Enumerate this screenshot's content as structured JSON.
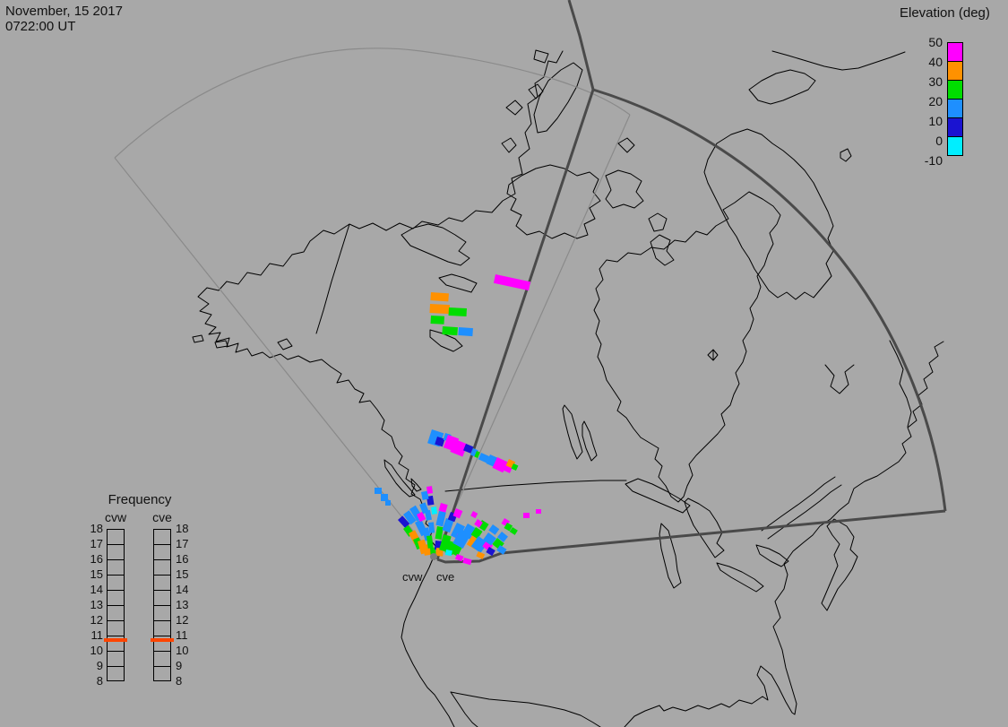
{
  "title_block": {
    "line1": "November, 15 2017",
    "line2": "0722:00 UT"
  },
  "elevation_legend": {
    "title": "Elevation (deg)",
    "ticks": [
      "50",
      "40",
      "30",
      "20",
      "10",
      "0",
      "-10"
    ],
    "swatches": [
      {
        "range_deg": "40 to 50",
        "color": "#ff00ff"
      },
      {
        "range_deg": "30 to 40",
        "color": "#ff9100"
      },
      {
        "range_deg": "20 to 30",
        "color": "#00dd00"
      },
      {
        "range_deg": "10 to 20",
        "color": "#1e8fff"
      },
      {
        "range_deg": "0 to 10",
        "color": "#1a13d1"
      },
      {
        "range_deg": "-10 to 0",
        "color": "#00eeff"
      }
    ]
  },
  "frequency_panel": {
    "title": "Frequency",
    "left_column_label": "cvw",
    "right_column_label": "cve",
    "scale": [
      "18",
      "17",
      "16",
      "15",
      "14",
      "13",
      "12",
      "11",
      "10",
      "9",
      "8"
    ],
    "marker": {
      "indicated_value_mhz": 10.7,
      "color": "#ff4500"
    }
  },
  "map_labels": {
    "west_radar": "cvw",
    "east_radar": "cve"
  },
  "map": {
    "background": "#a8a8a8",
    "coast_color": "#000000",
    "fov_west_color": "#8a8a8a",
    "fov_east_color": "#4a4a4a",
    "origin_dot_color": "#7c7c7c"
  },
  "chart_data": {
    "type": "scatter",
    "title": "SuperDARN elevation-angle backscatter over North America, Christmas Valley West (cvw) and East (cve) radars",
    "legend": {
      "label": "Elevation (deg)",
      "bins": [
        -10,
        0,
        10,
        20,
        30,
        40,
        50
      ]
    },
    "radar_sites": [
      {
        "id": "cvw",
        "px": [
          484,
          621
        ]
      },
      {
        "id": "cve",
        "px": [
          488,
          624
        ]
      }
    ],
    "palette": {
      "M": "#ff00ff",
      "O": "#ff9100",
      "G": "#00dd00",
      "B": "#1e8fff",
      "N": "#1a13d1",
      "C": "#00eeff"
    },
    "points": [
      [
        553,
        306,
        40,
        10,
        12,
        "M"
      ],
      [
        481,
        326,
        20,
        9,
        4,
        "O"
      ],
      [
        480,
        339,
        22,
        10,
        3,
        "O"
      ],
      [
        501,
        343,
        20,
        9,
        3,
        "G"
      ],
      [
        481,
        352,
        15,
        9,
        3,
        "G"
      ],
      [
        494,
        364,
        17,
        9,
        4,
        "G"
      ],
      [
        512,
        365,
        16,
        9,
        4,
        "B"
      ],
      [
        482,
        479,
        14,
        16,
        18,
        "B"
      ],
      [
        488,
        487,
        9,
        9,
        18,
        "N"
      ],
      [
        497,
        483,
        7,
        8,
        18,
        "B"
      ],
      [
        500,
        485,
        13,
        15,
        20,
        "M"
      ],
      [
        508,
        490,
        15,
        15,
        22,
        "M"
      ],
      [
        520,
        495,
        9,
        8,
        22,
        "N"
      ],
      [
        528,
        500,
        6,
        8,
        22,
        "B"
      ],
      [
        532,
        503,
        4,
        7,
        22,
        "G"
      ],
      [
        537,
        505,
        10,
        8,
        24,
        "B"
      ],
      [
        547,
        507,
        11,
        11,
        24,
        "B"
      ],
      [
        555,
        510,
        13,
        13,
        25,
        "M"
      ],
      [
        565,
        515,
        9,
        10,
        25,
        "M"
      ],
      [
        568,
        512,
        8,
        8,
        25,
        "O"
      ],
      [
        573,
        517,
        6,
        6,
        25,
        "G"
      ],
      [
        418,
        544,
        8,
        7,
        0,
        "B"
      ],
      [
        425,
        551,
        8,
        8,
        0,
        "B"
      ],
      [
        430,
        558,
        6,
        6,
        0,
        "B"
      ],
      [
        444,
        580,
        7,
        12,
        -42,
        "N"
      ],
      [
        450,
        574,
        8,
        14,
        -36,
        "B"
      ],
      [
        457,
        568,
        8,
        16,
        -32,
        "B"
      ],
      [
        450,
        590,
        7,
        11,
        -36,
        "G"
      ],
      [
        456,
        595,
        8,
        14,
        -28,
        "O"
      ],
      [
        463,
        583,
        8,
        17,
        -26,
        "B"
      ],
      [
        465,
        574,
        7,
        9,
        -26,
        "M"
      ],
      [
        468,
        563,
        7,
        11,
        -22,
        "B"
      ],
      [
        461,
        602,
        7,
        12,
        -22,
        "G"
      ],
      [
        466,
        604,
        8,
        15,
        -16,
        "O"
      ],
      [
        471,
        590,
        7,
        14,
        -15,
        "B"
      ],
      [
        474,
        570,
        6,
        11,
        -11,
        "B"
      ],
      [
        476,
        554,
        7,
        10,
        -9,
        "N"
      ],
      [
        470,
        549,
        7,
        9,
        -11,
        "B"
      ],
      [
        476,
        543,
        6,
        8,
        -8,
        "M"
      ],
      [
        472,
        608,
        8,
        12,
        -9,
        "O"
      ],
      [
        476,
        598,
        6,
        14,
        -7,
        "G"
      ],
      [
        478,
        583,
        6,
        12,
        -6,
        "B"
      ],
      [
        480,
        611,
        6,
        8,
        -4,
        "G"
      ],
      [
        481,
        566,
        6,
        8,
        -8,
        "C"
      ],
      [
        492,
        561,
        8,
        9,
        16,
        "M"
      ],
      [
        490,
        570,
        8,
        16,
        13,
        "B"
      ],
      [
        488,
        587,
        7,
        14,
        10,
        "G"
      ],
      [
        486,
        603,
        7,
        10,
        6,
        "N"
      ],
      [
        487,
        611,
        8,
        9,
        5,
        "O"
      ],
      [
        495,
        596,
        9,
        18,
        16,
        "G"
      ],
      [
        501,
        603,
        9,
        14,
        19,
        "G"
      ],
      [
        498,
        578,
        9,
        14,
        19,
        "B"
      ],
      [
        503,
        571,
        8,
        9,
        21,
        "N"
      ],
      [
        509,
        567,
        8,
        9,
        23,
        "M"
      ],
      [
        510,
        583,
        10,
        16,
        26,
        "B"
      ],
      [
        511,
        595,
        8,
        12,
        26,
        "M"
      ],
      [
        508,
        606,
        9,
        12,
        26,
        "G"
      ],
      [
        514,
        590,
        13,
        18,
        29,
        "B"
      ],
      [
        527,
        597,
        11,
        12,
        31,
        "O"
      ],
      [
        522,
        584,
        11,
        14,
        31,
        "B"
      ],
      [
        531,
        588,
        9,
        10,
        33,
        "G"
      ],
      [
        534,
        598,
        13,
        14,
        36,
        "B"
      ],
      [
        543,
        603,
        9,
        8,
        36,
        "M"
      ],
      [
        545,
        594,
        11,
        10,
        36,
        "B"
      ],
      [
        538,
        580,
        9,
        9,
        33,
        "G"
      ],
      [
        533,
        579,
        7,
        7,
        33,
        "M"
      ],
      [
        550,
        585,
        9,
        8,
        36,
        "B"
      ],
      [
        555,
        600,
        10,
        9,
        39,
        "G"
      ],
      [
        560,
        593,
        9,
        8,
        39,
        "B"
      ],
      [
        510,
        618,
        8,
        6,
        20,
        "M"
      ],
      [
        518,
        622,
        9,
        6,
        16,
        "M"
      ],
      [
        534,
        615,
        8,
        6,
        26,
        "O"
      ],
      [
        498,
        613,
        7,
        6,
        11,
        "C"
      ],
      [
        546,
        610,
        8,
        7,
        31,
        "N"
      ],
      [
        558,
        608,
        9,
        7,
        33,
        "B"
      ],
      [
        563,
        578,
        7,
        7,
        30,
        "M"
      ],
      [
        566,
        583,
        7,
        7,
        30,
        "G"
      ],
      [
        528,
        570,
        6,
        6,
        28,
        "M"
      ],
      [
        572,
        588,
        7,
        6,
        33,
        "G"
      ],
      [
        584,
        572,
        7,
        6,
        0,
        "M"
      ],
      [
        598,
        568,
        6,
        5,
        0,
        "M"
      ]
    ]
  }
}
